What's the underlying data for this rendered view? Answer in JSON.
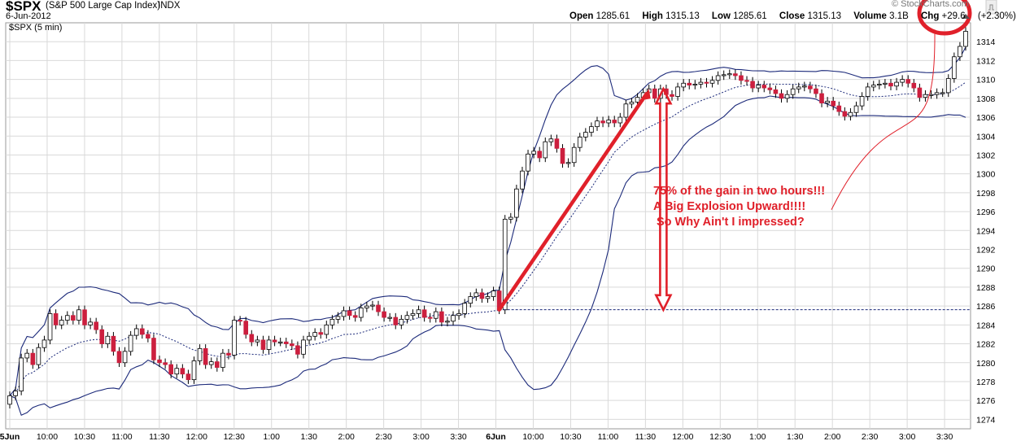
{
  "header": {
    "symbol": "$SPX",
    "name": "(S&P 500 Large Cap Index)",
    "exchange": "INDX",
    "date": "6-Jun-2012",
    "interval_label": "$SPX (5 min)",
    "watermark": "© StockCharts.com",
    "ohlc": {
      "open_label": "Open",
      "open": "1285.61",
      "high_label": "High",
      "high": "1315.13",
      "low_label": "Low",
      "low": "1285.61",
      "close_label": "Close",
      "close": "1315.13",
      "volume_label": "Volume",
      "volume": "3.1B",
      "chg_label": "Chg",
      "chg": "+29.6",
      "chg_pct": "(+2.30%)"
    }
  },
  "annotation": {
    "lines": [
      "75% of the gain in two hours!!!",
      "A Big Explosion Upward!!!!",
      "So Why Ain't I impressed?"
    ],
    "color": "#e0202a"
  },
  "colors": {
    "up": "#ffffff",
    "down": "#cc1f3e",
    "band": "#1c2a7a",
    "grid": "#d9d9d9",
    "accent": "#e0202a"
  },
  "chart_data": {
    "type": "candlestick",
    "interval": "5 min",
    "indicators": [
      "Bollinger Bands (upper, middle, lower)"
    ],
    "ylim": [
      1273,
      1316
    ],
    "yticks": [
      1314,
      1312,
      1310,
      1308,
      1306,
      1304,
      1302,
      1300,
      1298,
      1296,
      1294,
      1292,
      1290,
      1288,
      1286,
      1284,
      1282,
      1280,
      1278,
      1276,
      1274
    ],
    "xticks": [
      "5Jun",
      "10:00",
      "10:30",
      "11:00",
      "11:30",
      "12:00",
      "12:30",
      "1:00",
      "1:30",
      "2:00",
      "2:30",
      "3:00",
      "3:30",
      "6Jun",
      "10:00",
      "10:30",
      "11:00",
      "11:30",
      "12:00",
      "12:30",
      "1:00",
      "1:30",
      "2:00",
      "2:30",
      "3:00",
      "3:30"
    ],
    "closes": [
      1276.5,
      1277.0,
      1280.5,
      1281.0,
      1279.8,
      1281.6,
      1282.4,
      1285.2,
      1284.0,
      1284.5,
      1285.0,
      1284.5,
      1285.6,
      1284.0,
      1284.3,
      1283.5,
      1282.0,
      1282.8,
      1281.2,
      1280.0,
      1281.2,
      1282.9,
      1283.6,
      1283.0,
      1282.6,
      1280.3,
      1280.0,
      1279.8,
      1278.8,
      1279.4,
      1278.8,
      1278.2,
      1280.2,
      1281.5,
      1279.8,
      1280.1,
      1279.5,
      1281.0,
      1280.8,
      1284.5,
      1284.4,
      1283.0,
      1282.2,
      1282.4,
      1281.4,
      1282.4,
      1282.2,
      1282.2,
      1282.0,
      1281.8,
      1280.9,
      1282.4,
      1282.8,
      1283.2,
      1283.0,
      1284.0,
      1284.6,
      1284.9,
      1285.5,
      1285.0,
      1284.8,
      1285.8,
      1286.0,
      1286.1,
      1285.4,
      1284.8,
      1284.8,
      1284.0,
      1284.6,
      1285.0,
      1285.2,
      1285.6,
      1284.8,
      1284.7,
      1285.4,
      1284.3,
      1284.4,
      1285.0,
      1285.2,
      1286.3,
      1287.0,
      1287.4,
      1286.8,
      1287.0,
      1287.6,
      1285.6,
      1295.2,
      1295.4,
      1298.4,
      1300.3,
      1302.1,
      1302.4,
      1301.7,
      1303.4,
      1303.7,
      1302.7,
      1301.1,
      1301.2,
      1302.8,
      1303.9,
      1304.4,
      1305.0,
      1305.6,
      1305.4,
      1305.7,
      1305.4,
      1306.0,
      1307.4,
      1307.6,
      1308.1,
      1308.6,
      1309.0,
      1308.0,
      1309.0,
      1308.4,
      1308.2,
      1309.2,
      1309.6,
      1309.4,
      1309.5,
      1309.7,
      1309.6,
      1309.9,
      1310.4,
      1310.5,
      1310.6,
      1310.4,
      1309.9,
      1309.8,
      1309.1,
      1309.4,
      1309.1,
      1308.9,
      1308.5,
      1308.0,
      1308.4,
      1309.0,
      1309.2,
      1309.3,
      1309.0,
      1308.5,
      1307.5,
      1307.7,
      1307.2,
      1306.6,
      1306.1,
      1306.5,
      1307.2,
      1308.2,
      1309.2,
      1309.4,
      1309.5,
      1309.6,
      1309.3,
      1309.7,
      1310.0,
      1309.6,
      1309.1,
      1308.1,
      1308.4,
      1308.4,
      1308.6,
      1308.6,
      1310.1,
      1312.4,
      1313.5,
      1315.1
    ],
    "price_line": 1285.61
  }
}
